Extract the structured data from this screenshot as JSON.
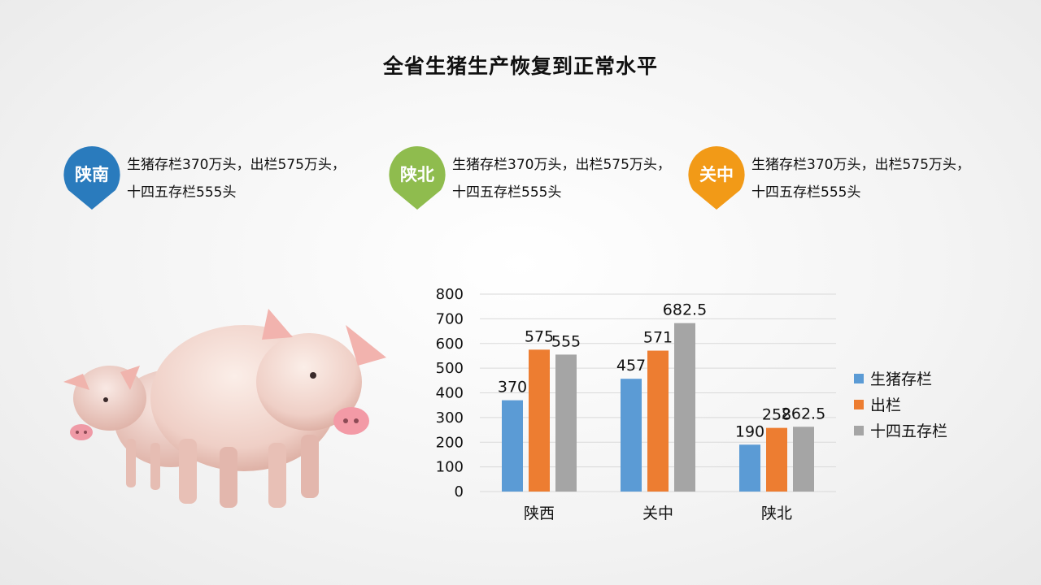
{
  "page": {
    "title": "全省生猪生产恢复到正常水平"
  },
  "regions": [
    {
      "name": "陕南",
      "color": "#2a7bbd",
      "text": "生猪存栏370万头，出栏575万头，十四五存栏555头"
    },
    {
      "name": "陕北",
      "color": "#8fbc4e",
      "text": "生猪存栏370万头，出栏575万头，十四五存栏555头"
    },
    {
      "name": "关中",
      "color": "#f29a17",
      "text": "生猪存栏370万头，出栏575万头，十四五存栏555头"
    }
  ],
  "chart_data": {
    "type": "bar",
    "categories": [
      "陕西",
      "关中",
      "陕北"
    ],
    "series": [
      {
        "name": "生猪存栏",
        "color": "#5b9bd5",
        "values": [
          370,
          457,
          190
        ],
        "labels": [
          "370",
          "457",
          "190"
        ]
      },
      {
        "name": "出栏",
        "color": "#ed7d31",
        "values": [
          575,
          571,
          258
        ],
        "labels": [
          "575",
          "571",
          "258"
        ]
      },
      {
        "name": "十四五存栏",
        "color": "#a5a5a5",
        "values": [
          555,
          682.5,
          262.5
        ],
        "labels": [
          "555",
          "682.5",
          "262.5"
        ]
      }
    ],
    "ylim": [
      0,
      800
    ],
    "yticks": [
      "0",
      "100",
      "200",
      "300",
      "400",
      "500",
      "600",
      "700",
      "800"
    ],
    "grid": true,
    "legend": "right"
  }
}
